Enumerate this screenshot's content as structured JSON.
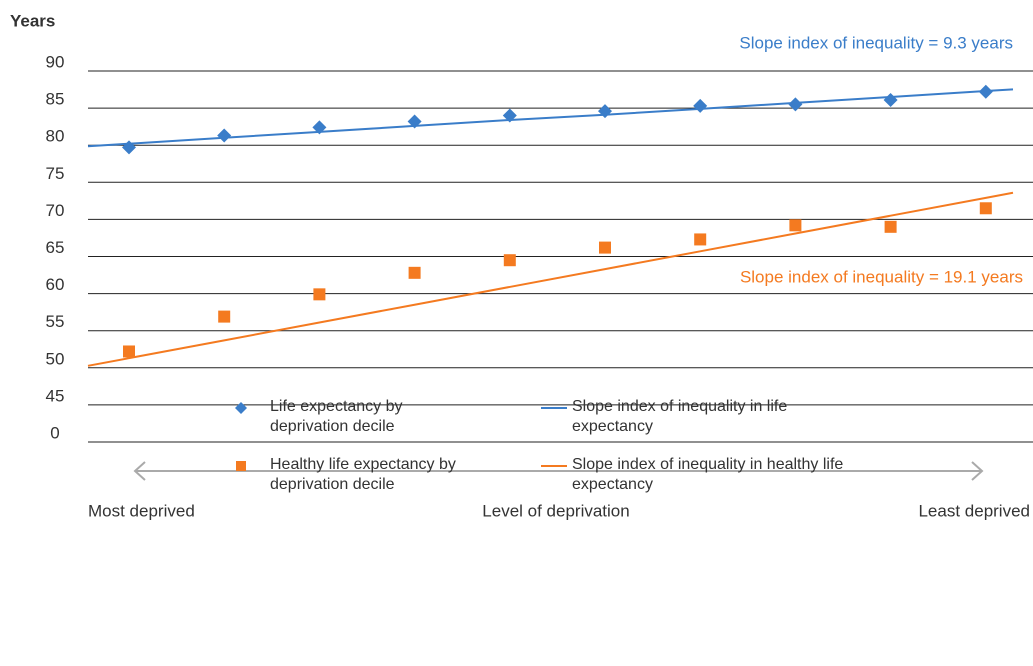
{
  "chart_data": {
    "type": "line",
    "y_axis_label": "Years",
    "categories": [
      null,
      null,
      null,
      null,
      null,
      null,
      null,
      null,
      null,
      null
    ],
    "ylim": [
      0,
      90
    ],
    "yticks": [
      0,
      45,
      50,
      55,
      60,
      65,
      70,
      75,
      80,
      85,
      90
    ],
    "grid": true,
    "broken_axis": true,
    "x_labels": {
      "left": "Most deprived",
      "center": "Level of deprivation",
      "right": "Least deprived"
    },
    "annotations": [
      {
        "text": "Slope index of inequality = 9.3 years",
        "color": "#3a7dc9"
      },
      {
        "text": "Slope index of inequality = 19.1 years",
        "color": "#f47a20"
      }
    ],
    "series": [
      {
        "name": "Life expectancy by deprivation decile",
        "color": "#3a7dc9",
        "marker": "diamond",
        "values": [
          79.7,
          81.3,
          82.4,
          83.2,
          84.0,
          84.6,
          85.3,
          85.5,
          86.1,
          87.2
        ]
      },
      {
        "name": "Healthy life expectancy by deprivation decile",
        "color": "#f47a20",
        "marker": "square",
        "values": [
          52.2,
          56.9,
          59.9,
          62.8,
          64.5,
          66.2,
          67.3,
          69.2,
          69.0,
          71.5
        ]
      },
      {
        "name": "Slope index of inequality in life expectancy",
        "color": "#3a7dc9",
        "marker": "line",
        "values": [
          80.2,
          81.0,
          81.8,
          82.6,
          83.4,
          84.1,
          84.9,
          85.7,
          86.5,
          87.3
        ]
      },
      {
        "name": "Slope index of inequality in healthy life expectancy",
        "color": "#f47a20",
        "marker": "line",
        "values": [
          51.3,
          53.7,
          56.1,
          58.5,
          60.9,
          63.3,
          65.7,
          68.1,
          70.5,
          72.9
        ]
      }
    ]
  }
}
